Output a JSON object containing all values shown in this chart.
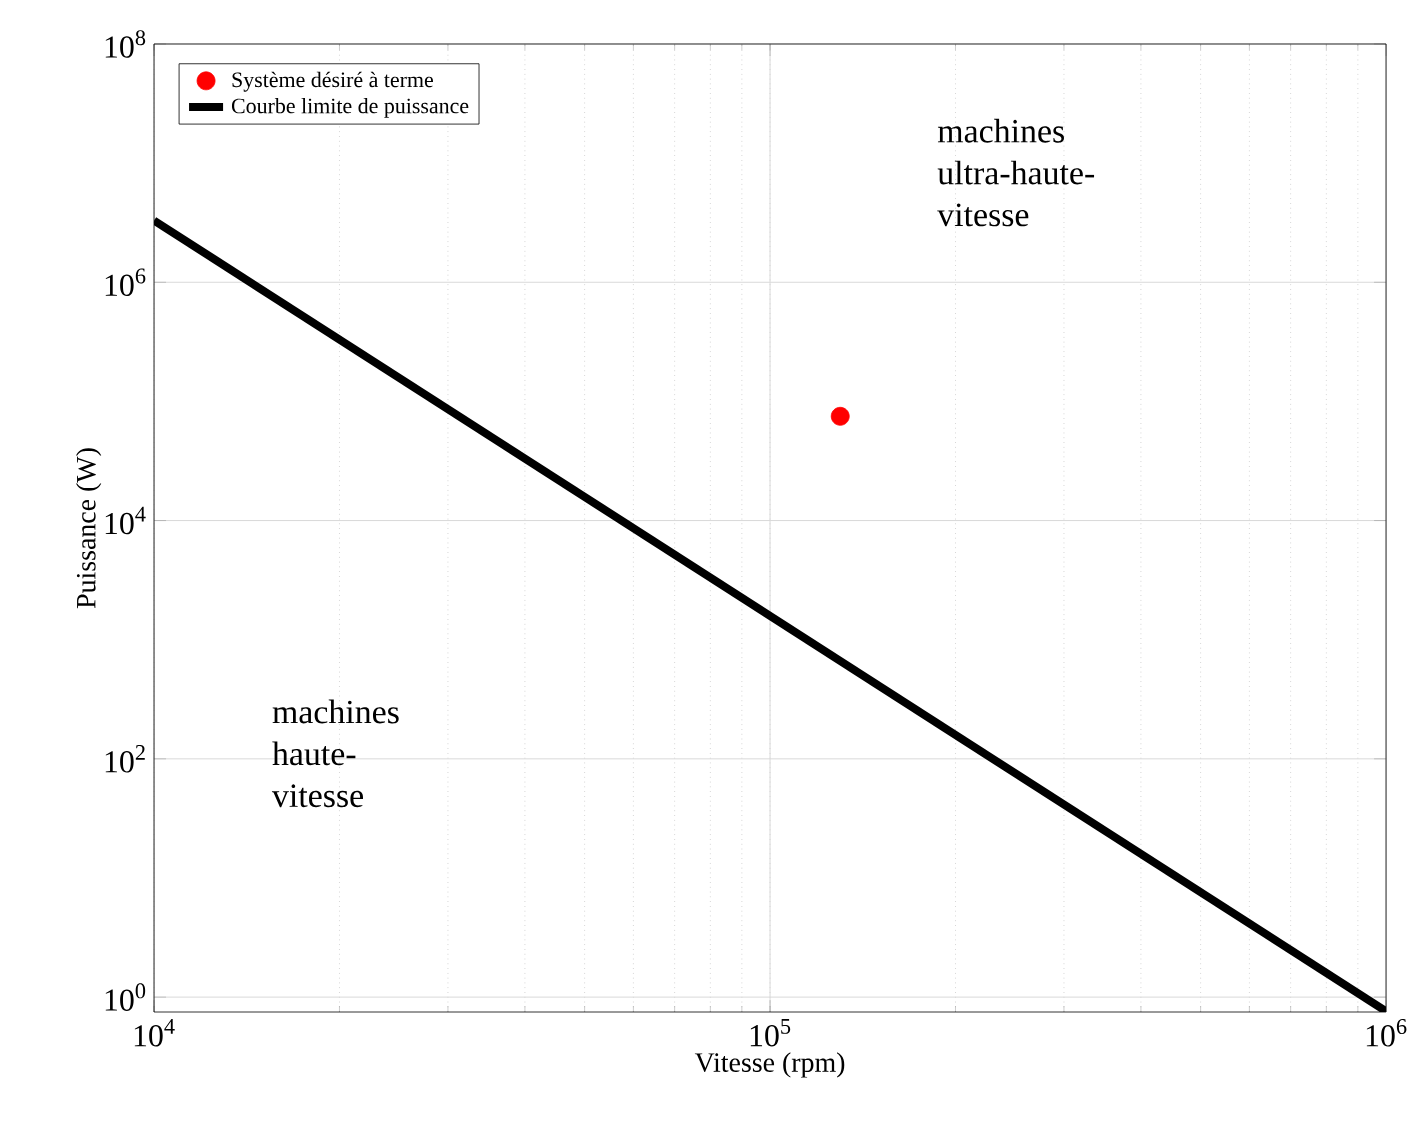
{
  "chart_data": {
    "type": "line",
    "xlabel": "Vitesse (rpm)",
    "ylabel": "Puissance (W)",
    "log": "xy",
    "grid": true,
    "legend": "top left",
    "xlim": [
      10000,
      1000000
    ],
    "ylim": [
      0.75,
      100000000
    ],
    "xticks": [
      {
        "value": 10000,
        "label": "10$^{4}$"
      },
      {
        "value": 100000,
        "label": "10$^{5}$"
      },
      {
        "value": 1000000,
        "label": "10$^{6}$"
      }
    ],
    "yticks": [
      {
        "value": 1,
        "label": "10$^{0}$"
      },
      {
        "value": 100,
        "label": "10$^{2}$"
      },
      {
        "value": 10000,
        "label": "10$^{4}$"
      },
      {
        "value": 1000000,
        "label": "10$^{6}$"
      },
      {
        "value": 100000000,
        "label": "10$^{8}$"
      }
    ],
    "series": [
      {
        "name": "Système désiré à terme",
        "type": "scatter",
        "color": "#ff0000",
        "marker": "circle",
        "x": [
          130000
        ],
        "values": [
          75000
        ]
      },
      {
        "name": "Courbe limite de puissance",
        "color": "#000000",
        "marker": "none",
        "line_style": "solid",
        "x": [
          10000,
          1000000
        ],
        "values": [
          3300000,
          0.76
        ]
      }
    ],
    "annotations": [
      "machines ultra-haute-vitesse",
      "machines haute-vitesse"
    ]
  }
}
